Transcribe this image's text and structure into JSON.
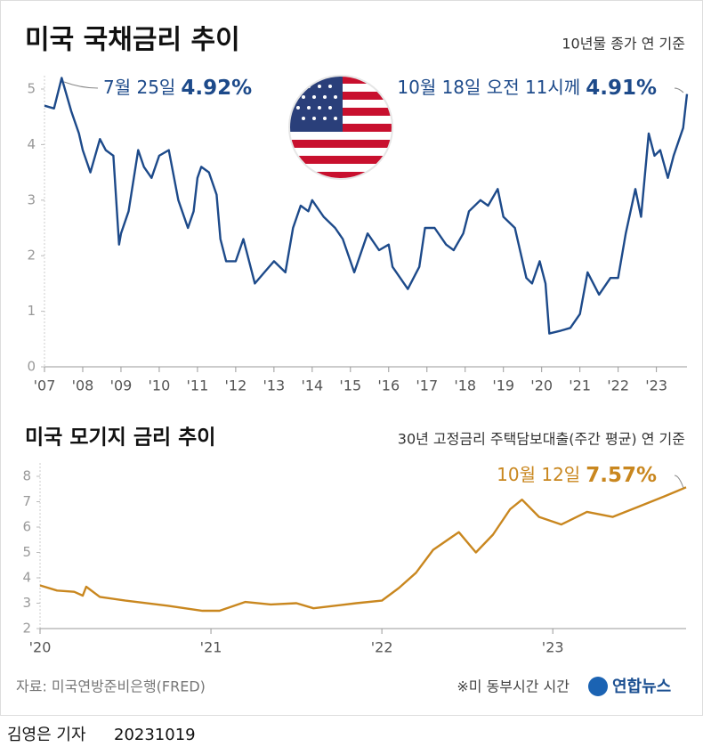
{
  "chart_data": [
    {
      "type": "line",
      "title": "미국 국채금리 추이",
      "subtitle": "10년물 종가 연 기준",
      "annotations": [
        {
          "text": "7월 25일",
          "value": 4.92,
          "label": "4.92%"
        },
        {
          "text": "10월 18일 오전 11시께",
          "value": 4.91,
          "label": "4.91%"
        }
      ],
      "x": [
        2007.0,
        2007.25,
        2007.45,
        2007.7,
        2007.9,
        2008.0,
        2008.2,
        2008.45,
        2008.6,
        2008.8,
        2008.95,
        2009.0,
        2009.2,
        2009.45,
        2009.6,
        2009.8,
        2010.0,
        2010.25,
        2010.5,
        2010.75,
        2010.9,
        2011.0,
        2011.1,
        2011.3,
        2011.5,
        2011.6,
        2011.75,
        2012.0,
        2012.2,
        2012.5,
        2012.75,
        2013.0,
        2013.3,
        2013.5,
        2013.7,
        2013.9,
        2014.0,
        2014.3,
        2014.6,
        2014.8,
        2015.0,
        2015.1,
        2015.45,
        2015.75,
        2016.0,
        2016.1,
        2016.5,
        2016.8,
        2016.95,
        2017.2,
        2017.5,
        2017.7,
        2017.95,
        2018.1,
        2018.4,
        2018.6,
        2018.85,
        2019.0,
        2019.3,
        2019.6,
        2019.75,
        2019.95,
        2020.1,
        2020.2,
        2020.5,
        2020.75,
        2021.0,
        2021.2,
        2021.5,
        2021.8,
        2022.0,
        2022.2,
        2022.45,
        2022.6,
        2022.8,
        2022.95,
        2023.1,
        2023.3,
        2023.45,
        2023.6,
        2023.7,
        2023.8
      ],
      "series": [
        {
          "color": "#1d4a8a",
          "values": [
            4.7,
            4.65,
            5.2,
            4.6,
            4.2,
            3.9,
            3.5,
            4.1,
            3.9,
            3.8,
            2.2,
            2.4,
            2.8,
            3.9,
            3.6,
            3.4,
            3.8,
            3.9,
            3.0,
            2.5,
            2.8,
            3.4,
            3.6,
            3.5,
            3.1,
            2.3,
            1.9,
            1.9,
            2.3,
            1.5,
            1.7,
            1.9,
            1.7,
            2.5,
            2.9,
            2.8,
            3.0,
            2.7,
            2.5,
            2.3,
            1.9,
            1.7,
            2.4,
            2.1,
            2.2,
            1.8,
            1.4,
            1.8,
            2.5,
            2.5,
            2.2,
            2.1,
            2.4,
            2.8,
            3.0,
            2.9,
            3.2,
            2.7,
            2.5,
            1.6,
            1.5,
            1.9,
            1.5,
            0.6,
            0.65,
            0.7,
            0.95,
            1.7,
            1.3,
            1.6,
            1.6,
            2.4,
            3.2,
            2.7,
            4.2,
            3.8,
            3.9,
            3.4,
            3.8,
            4.1,
            4.3,
            4.91
          ]
        }
      ],
      "xlim": [
        2007,
        2023.8
      ],
      "xticks": [
        {
          "value": 2007,
          "label": "'07"
        },
        {
          "value": 2008,
          "label": "'08"
        },
        {
          "value": 2009,
          "label": "'09"
        },
        {
          "value": 2010,
          "label": "'10"
        },
        {
          "value": 2011,
          "label": "'11"
        },
        {
          "value": 2012,
          "label": "'12"
        },
        {
          "value": 2013,
          "label": "'13"
        },
        {
          "value": 2014,
          "label": "'14"
        },
        {
          "value": 2015,
          "label": "'15"
        },
        {
          "value": 2016,
          "label": "'16"
        },
        {
          "value": 2017,
          "label": "'17"
        },
        {
          "value": 2018,
          "label": "'18"
        },
        {
          "value": 2019,
          "label": "'19"
        },
        {
          "value": 2020,
          "label": "'20"
        },
        {
          "value": 2021,
          "label": "'21"
        },
        {
          "value": 2022,
          "label": "'22"
        },
        {
          "value": 2023,
          "label": "'23"
        }
      ],
      "ylim": [
        0,
        5
      ],
      "yticks": [
        0,
        1,
        2,
        3,
        4,
        5
      ],
      "grid": false
    },
    {
      "type": "line",
      "title": "미국 모기지 금리 추이",
      "subtitle": "30년 고정금리 주택담보대출(주간 평균) 연 기준",
      "annotations": [
        {
          "text": "10월 12일",
          "value": 7.57,
          "label": "7.57%"
        }
      ],
      "x": [
        2020.0,
        2020.1,
        2020.2,
        2020.25,
        2020.27,
        2020.35,
        2020.5,
        2020.75,
        2020.95,
        2021.05,
        2021.2,
        2021.35,
        2021.5,
        2021.6,
        2021.85,
        2022.0,
        2022.1,
        2022.2,
        2022.3,
        2022.45,
        2022.55,
        2022.65,
        2022.75,
        2022.82,
        2022.92,
        2023.05,
        2023.2,
        2023.35,
        2023.5,
        2023.65,
        2023.78
      ],
      "series": [
        {
          "color": "#c9871f",
          "values": [
            3.7,
            3.5,
            3.45,
            3.3,
            3.65,
            3.25,
            3.1,
            2.9,
            2.7,
            2.7,
            3.05,
            2.95,
            3.0,
            2.8,
            3.0,
            3.1,
            3.6,
            4.2,
            5.1,
            5.8,
            5.0,
            5.7,
            6.7,
            7.08,
            6.4,
            6.1,
            6.6,
            6.4,
            6.8,
            7.2,
            7.57
          ]
        }
      ],
      "xlim": [
        2020,
        2023.78
      ],
      "xticks": [
        {
          "value": 2020,
          "label": "'20"
        },
        {
          "value": 2021,
          "label": "'21"
        },
        {
          "value": 2022,
          "label": "'22"
        },
        {
          "value": 2023,
          "label": "'23"
        }
      ],
      "ylim": [
        2,
        8
      ],
      "yticks": [
        2,
        3,
        4,
        5,
        6,
        7,
        8
      ],
      "grid": false
    }
  ],
  "footer": {
    "source": "자료: 미국연방준비은행(FRED)",
    "note": "※미 동부시간 시간",
    "logo": "연합뉴스",
    "byline": "김영은 기자",
    "date": "20231019"
  }
}
